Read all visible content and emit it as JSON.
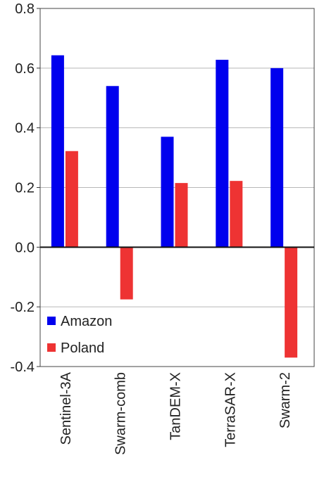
{
  "chart_data": {
    "type": "bar",
    "categories": [
      "Sentinel-3A",
      "Swarm-comb",
      "TanDEM-X",
      "TerraSAR-X",
      "Swarm-2"
    ],
    "series": [
      {
        "name": "Amazon",
        "color": "#0000ee",
        "values": [
          0.643,
          0.54,
          0.37,
          0.628,
          0.6
        ]
      },
      {
        "name": "Poland",
        "color": "#ee3333",
        "values": [
          0.322,
          -0.175,
          0.215,
          0.222,
          -0.37
        ]
      }
    ],
    "title": "",
    "xlabel": "",
    "ylabel": "",
    "ylim": [
      -0.4,
      0.8
    ],
    "yticks": [
      -0.4,
      -0.2,
      0.0,
      0.2,
      0.4,
      0.6,
      0.8
    ],
    "ytick_labels": [
      "-0.4",
      "-0.2",
      "0.0",
      "0.2",
      "0.4",
      "0.6",
      "0.8"
    ],
    "grid": true,
    "legend_position": "bottom-left"
  }
}
